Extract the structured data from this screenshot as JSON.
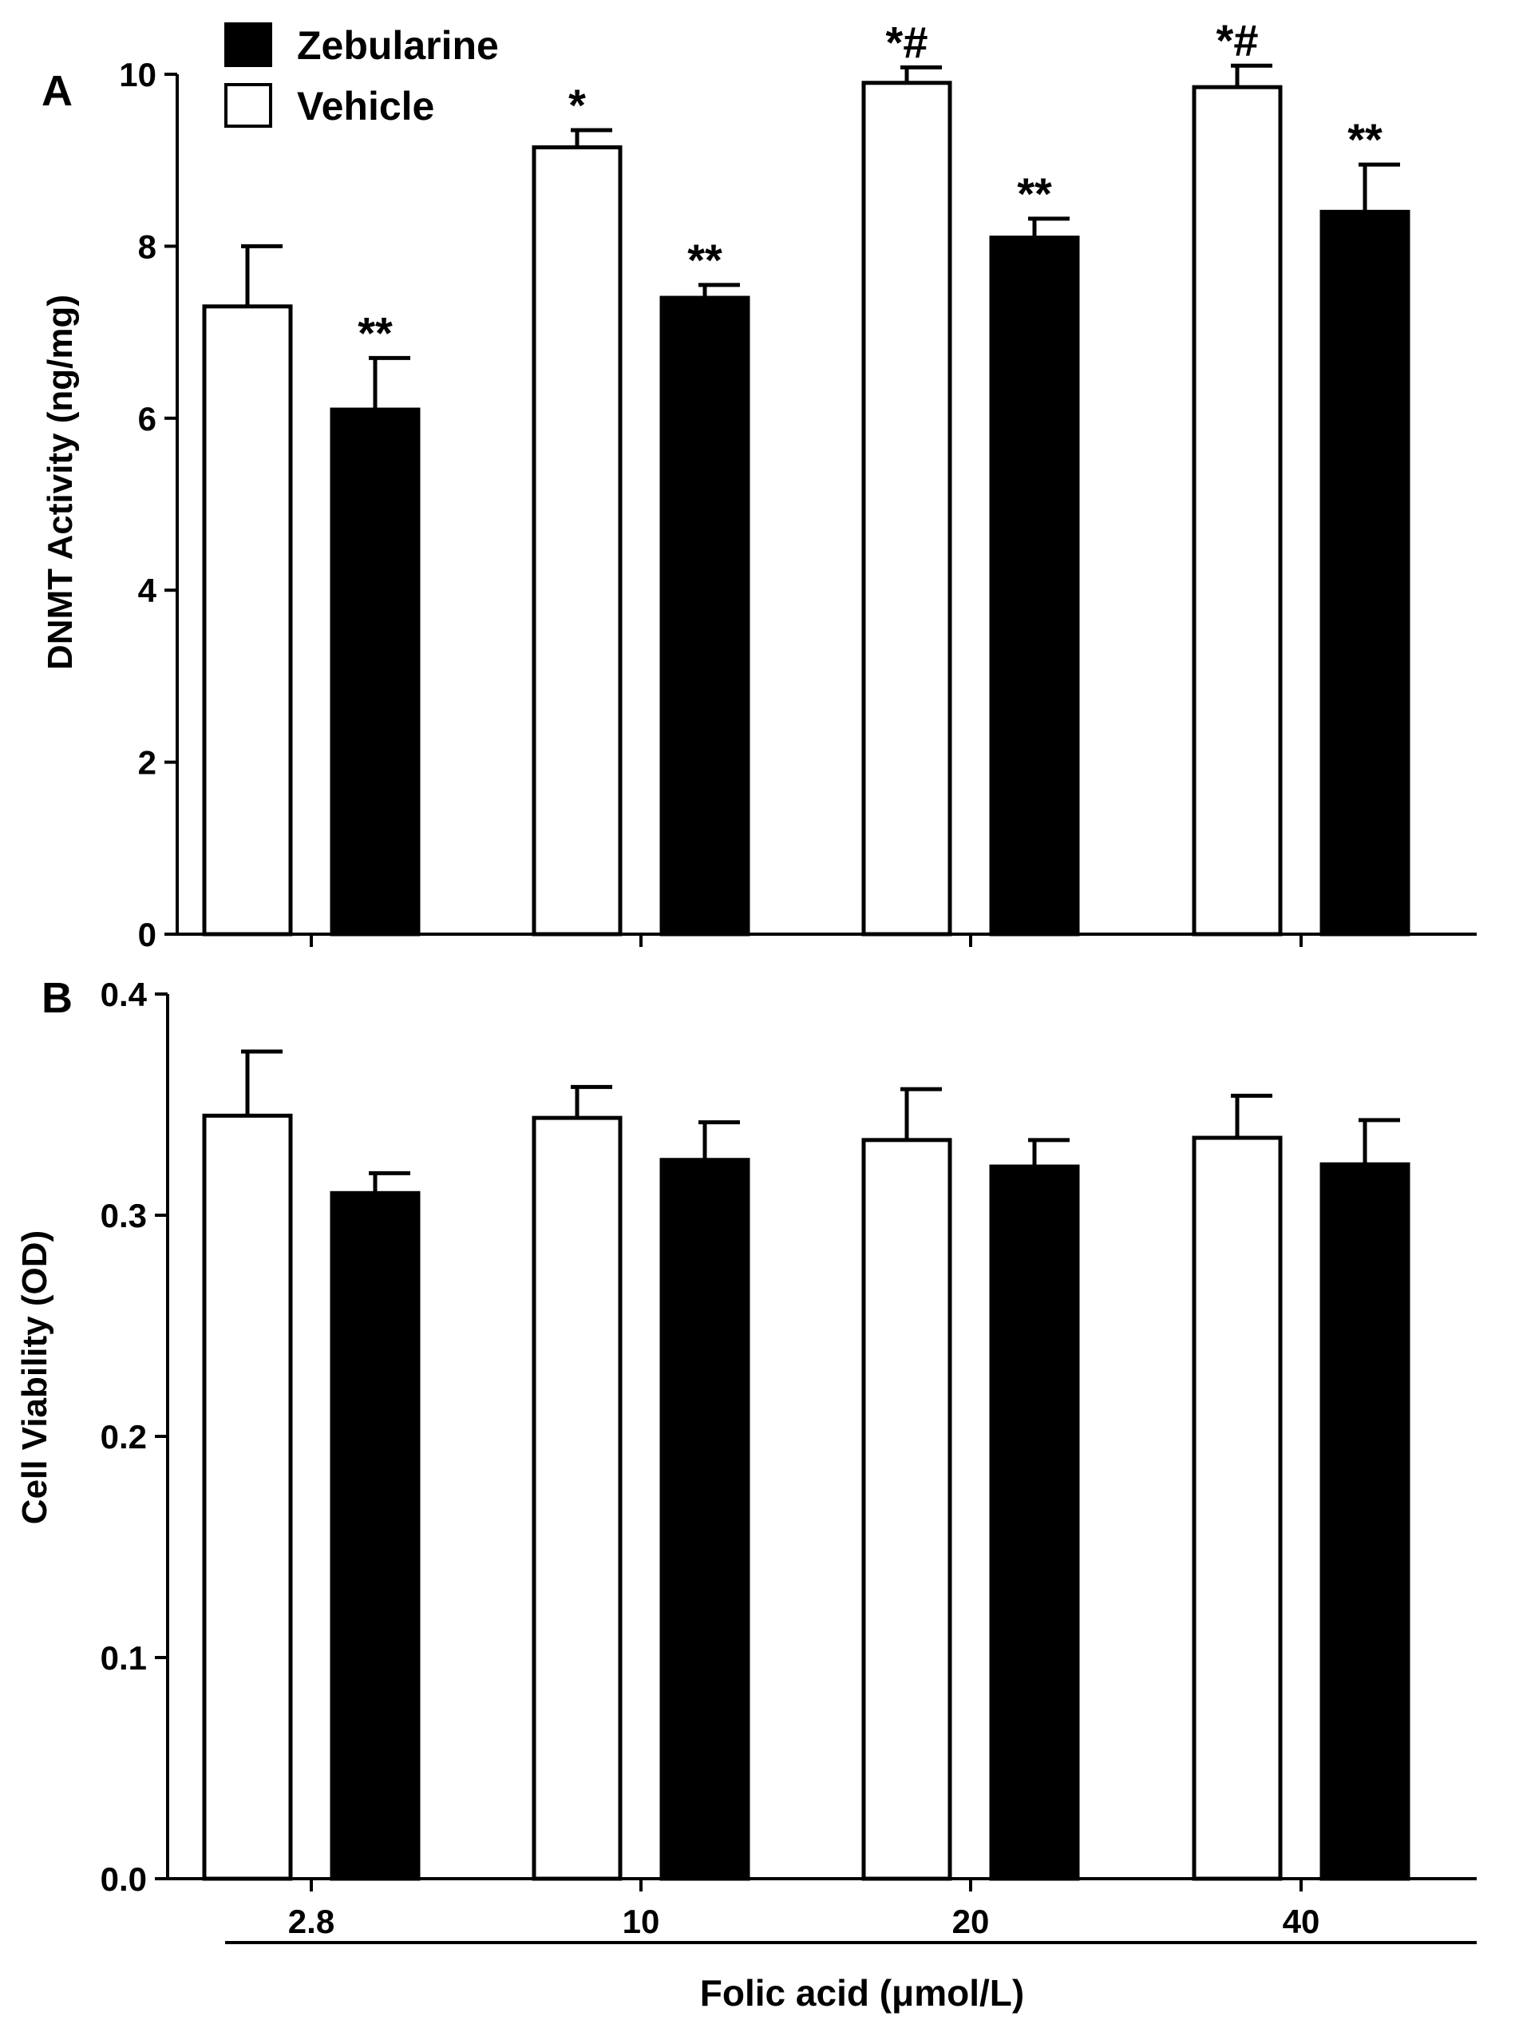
{
  "colors": {
    "zebularine": "#000000",
    "vehicle": "#ffffff",
    "stroke": "#000000"
  },
  "legend": {
    "position": "top-left",
    "items": [
      {
        "name": "Zebularine",
        "swatch": "filled"
      },
      {
        "name": "Vehicle",
        "swatch": "open"
      }
    ]
  },
  "xaxis": {
    "label": "Folic acid (μmol/L)"
  },
  "chart_data": [
    {
      "type": "bar",
      "panel": "A",
      "ylabel": "DNMT Activity (ng/mg)",
      "ylim": [
        0,
        10
      ],
      "yticks": [
        0,
        2,
        4,
        6,
        8,
        10
      ],
      "categories": [
        "2.8",
        "10",
        "20",
        "40"
      ],
      "show_category_labels": false,
      "series": [
        {
          "name": "Vehicle",
          "fill": "open",
          "values": [
            7.3,
            9.15,
            9.9,
            9.85
          ],
          "errors": [
            0.7,
            0.2,
            0.18,
            0.25
          ],
          "annotations": [
            "",
            "*",
            "*#",
            "*#"
          ]
        },
        {
          "name": "Zebularine",
          "fill": "filled",
          "values": [
            6.1,
            7.4,
            8.1,
            8.4
          ],
          "errors": [
            0.6,
            0.15,
            0.22,
            0.55
          ],
          "annotations": [
            "**",
            "**",
            "**",
            "**"
          ]
        }
      ],
      "grid": false
    },
    {
      "type": "bar",
      "panel": "B",
      "ylabel": "Cell Viability (OD)",
      "ylim": [
        0,
        0.4
      ],
      "yticks": [
        "0.0",
        "0.1",
        "0.2",
        "0.3",
        "0.4"
      ],
      "categories": [
        "2.8",
        "10",
        "20",
        "40"
      ],
      "show_category_labels": true,
      "series": [
        {
          "name": "Vehicle",
          "fill": "open",
          "values": [
            0.345,
            0.344,
            0.334,
            0.335
          ],
          "errors": [
            0.029,
            0.014,
            0.023,
            0.019
          ],
          "annotations": [
            "",
            "",
            "",
            ""
          ]
        },
        {
          "name": "Zebularine",
          "fill": "filled",
          "values": [
            0.31,
            0.325,
            0.322,
            0.323
          ],
          "errors": [
            0.009,
            0.017,
            0.012,
            0.02
          ],
          "annotations": [
            "",
            "",
            "",
            ""
          ]
        }
      ],
      "grid": false
    }
  ]
}
